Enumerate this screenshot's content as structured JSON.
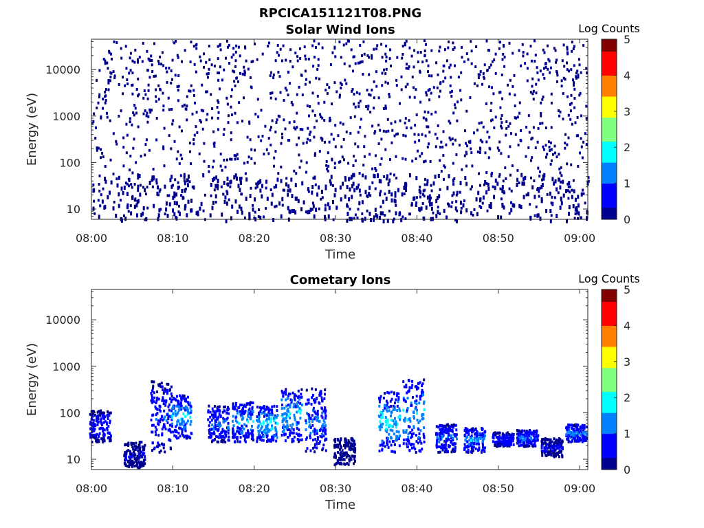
{
  "figure_title": "RPCICA151121T08.PNG",
  "colormap": [
    "#00008f",
    "#0000ff",
    "#0080ff",
    "#00ffff",
    "#80ff80",
    "#ffff00",
    "#ff8000",
    "#ff0000",
    "#800000"
  ],
  "chart_data": [
    {
      "type": "heatmap",
      "title": "Solar Wind Ions",
      "xlabel": "Time",
      "ylabel": "Energy (eV)",
      "x_range": [
        "08:00",
        "09:01"
      ],
      "y_range_ev": [
        6,
        45000
      ],
      "y_scale": "log",
      "x_ticks": [
        "08:00",
        "08:10",
        "08:20",
        "08:30",
        "08:40",
        "08:50",
        "09:00"
      ],
      "y_ticks": [
        "10",
        "100",
        "1000",
        "10000"
      ],
      "colorbar": {
        "label": "Log Counts",
        "min": 0,
        "max": 5,
        "ticks": [
          "0",
          "1",
          "2",
          "3",
          "4",
          "5"
        ]
      },
      "description_of_values": "sparse log counts ~0-0.3 scattered across 10-30000 eV; denser bands near 20-50 eV",
      "dominant_value": 0.1
    },
    {
      "type": "heatmap",
      "title": "Cometary Ions",
      "xlabel": "Time",
      "ylabel": "Energy (eV)",
      "x_range": [
        "08:00",
        "09:01"
      ],
      "y_range_ev": [
        6,
        45000
      ],
      "y_scale": "log",
      "x_ticks": [
        "08:00",
        "08:10",
        "08:20",
        "08:30",
        "08:40",
        "08:50",
        "09:00"
      ],
      "y_ticks": [
        "10",
        "100",
        "1000",
        "10000"
      ],
      "colorbar": {
        "label": "Log Counts",
        "min": 0,
        "max": 5,
        "ticks": [
          "0",
          "1",
          "2",
          "3",
          "4",
          "5"
        ]
      },
      "bursts": [
        {
          "t_min": 1.0,
          "e_low": 25,
          "e_high": 120,
          "peak": 0.8
        },
        {
          "t_min": 5.2,
          "e_low": 7,
          "e_high": 25,
          "peak": 0.4
        },
        {
          "t_min": 8.5,
          "e_low": 15,
          "e_high": 500,
          "peak": 1.0
        },
        {
          "t_min": 11.0,
          "e_low": 30,
          "e_high": 250,
          "peak": 1.8
        },
        {
          "t_min": 15.5,
          "e_low": 25,
          "e_high": 150,
          "peak": 1.2
        },
        {
          "t_min": 18.5,
          "e_low": 25,
          "e_high": 180,
          "peak": 1.6
        },
        {
          "t_min": 21.5,
          "e_low": 25,
          "e_high": 150,
          "peak": 2.1
        },
        {
          "t_min": 24.5,
          "e_low": 25,
          "e_high": 350,
          "peak": 1.9
        },
        {
          "t_min": 27.5,
          "e_low": 15,
          "e_high": 350,
          "peak": 1.4
        },
        {
          "t_min": 31.0,
          "e_low": 8,
          "e_high": 30,
          "peak": 0.3
        },
        {
          "t_min": 36.5,
          "e_low": 15,
          "e_high": 300,
          "peak": 2.0
        },
        {
          "t_min": 39.5,
          "e_low": 15,
          "e_high": 550,
          "peak": 1.7
        },
        {
          "t_min": 43.5,
          "e_low": 15,
          "e_high": 60,
          "peak": 1.2
        },
        {
          "t_min": 47.0,
          "e_low": 15,
          "e_high": 50,
          "peak": 1.5
        },
        {
          "t_min": 50.5,
          "e_low": 20,
          "e_high": 40,
          "peak": 0.8
        },
        {
          "t_min": 53.5,
          "e_low": 20,
          "e_high": 45,
          "peak": 1.3
        },
        {
          "t_min": 56.5,
          "e_low": 12,
          "e_high": 30,
          "peak": 0.5
        },
        {
          "t_min": 59.5,
          "e_low": 25,
          "e_high": 60,
          "peak": 1.4
        }
      ]
    }
  ]
}
